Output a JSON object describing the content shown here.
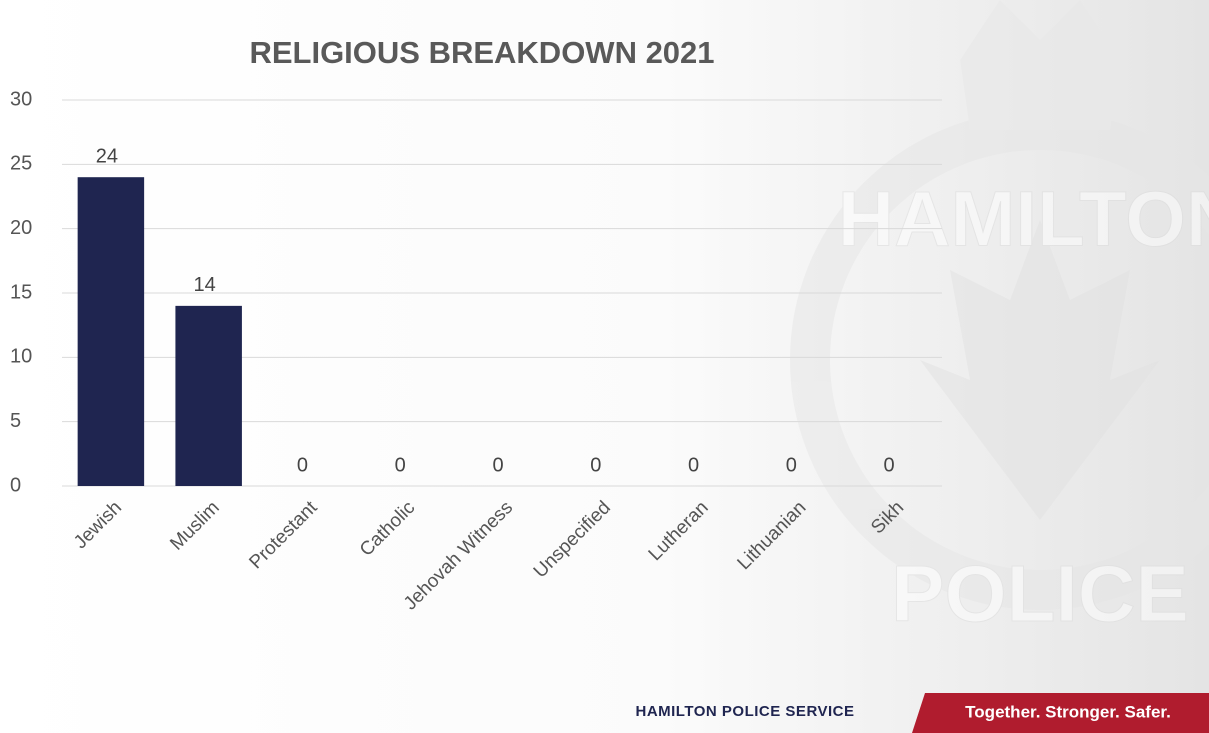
{
  "chart_data": {
    "type": "bar",
    "title": "RELIGIOUS BREAKDOWN 2021",
    "categories": [
      "Jewish",
      "Muslim",
      "Protestant",
      "Catholic",
      "Jehovah Witness",
      "Unspecified",
      "Lutheran",
      "Lithuanian",
      "Sikh"
    ],
    "values": [
      24,
      14,
      0,
      0,
      0,
      0,
      0,
      0,
      0
    ],
    "color": "#1f2550",
    "ylim": [
      0,
      30
    ],
    "yticks": [
      0,
      5,
      10,
      15,
      20,
      25,
      30
    ],
    "grid": true
  },
  "watermark": {
    "top": "HAMILTON",
    "bottom": "POLICE"
  },
  "footer": {
    "organization": "HAMILTON POLICE SERVICE",
    "slogan": "Together. Stronger. Safer."
  }
}
